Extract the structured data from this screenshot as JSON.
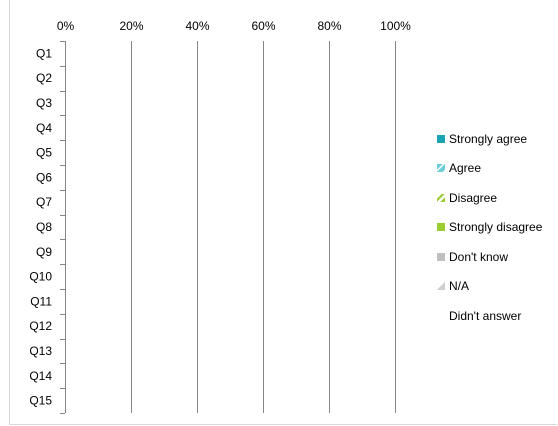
{
  "chart_data": {
    "type": "bar",
    "orientation": "horizontal",
    "stacked": "percent",
    "categories": [
      "Q1",
      "Q2",
      "Q3",
      "Q4",
      "Q5",
      "Q6",
      "Q7",
      "Q8",
      "Q9",
      "Q10",
      "Q11",
      "Q12",
      "Q13",
      "Q14",
      "Q15"
    ],
    "x_ticks": [
      "0%",
      "20%",
      "40%",
      "60%",
      "80%",
      "100%"
    ],
    "xlim": [
      0,
      100
    ],
    "grid": "vertical",
    "legend_position": "right",
    "series": [
      {
        "name": "Strongly agree",
        "color": "#1aa3b3",
        "values": [
          0,
          0,
          0,
          0,
          0,
          0,
          0,
          0,
          0,
          0,
          0,
          0,
          0,
          0,
          0
        ]
      },
      {
        "name": "Agree",
        "color": "#6fcfd9",
        "values": [
          0,
          0,
          0,
          0,
          0,
          0,
          0,
          0,
          0,
          0,
          0,
          0,
          0,
          0,
          0
        ]
      },
      {
        "name": "Disagree",
        "color": "#9acd32",
        "values": [
          0,
          0,
          0,
          0,
          0,
          0,
          0,
          0,
          0,
          0,
          0,
          0,
          0,
          0,
          0
        ]
      },
      {
        "name": "Strongly disagree",
        "color": "#9acd32",
        "values": [
          0,
          0,
          0,
          0,
          0,
          0,
          0,
          0,
          0,
          0,
          0,
          0,
          0,
          0,
          0
        ]
      },
      {
        "name": "Don't know",
        "color": "#bfbfbf",
        "values": [
          0,
          0,
          0,
          0,
          0,
          0,
          0,
          0,
          0,
          0,
          0,
          0,
          0,
          0,
          0
        ]
      },
      {
        "name": "N/A",
        "color": "#cfcfcf",
        "values": [
          0,
          0,
          0,
          0,
          0,
          0,
          0,
          0,
          0,
          0,
          0,
          0,
          0,
          0,
          0
        ]
      },
      {
        "name": "Didn't answer",
        "color": "none",
        "values": [
          0,
          0,
          0,
          0,
          0,
          0,
          0,
          0,
          0,
          0,
          0,
          0,
          0,
          0,
          0
        ]
      }
    ]
  },
  "legend": [
    {
      "label": "Strongly agree",
      "swatch": "strongly-agree"
    },
    {
      "label": "Agree",
      "swatch": "agree"
    },
    {
      "label": "Disagree",
      "swatch": "disagree"
    },
    {
      "label": "Strongly disagree",
      "swatch": "strongly-disagree"
    },
    {
      "label": "Don't know",
      "swatch": "dont-know"
    },
    {
      "label": "N/A",
      "swatch": "na"
    },
    {
      "label": "Didn't answer",
      "swatch": "none"
    }
  ]
}
